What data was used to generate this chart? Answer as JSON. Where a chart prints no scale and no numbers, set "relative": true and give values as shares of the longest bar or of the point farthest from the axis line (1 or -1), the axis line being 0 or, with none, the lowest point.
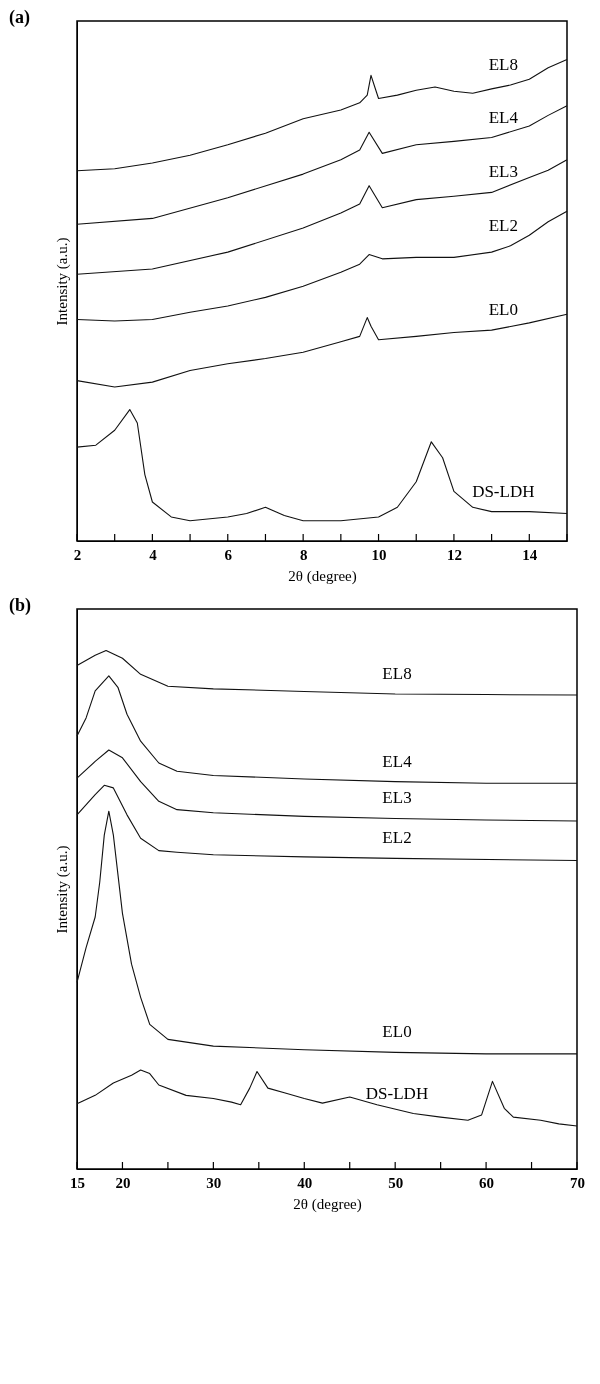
{
  "chart_data": [
    {
      "type": "line",
      "title": "(a)",
      "xlabel": "2θ (degree)",
      "ylabel": "Intensity (a.u.)",
      "relative": true,
      "grid": false,
      "line_style": "solid",
      "marker": "none",
      "tick_labels": "x",
      "xlim": [
        2,
        15
      ],
      "xticks": [
        2,
        {
          "value": 3,
          "label": null
        },
        4,
        {
          "value": 5,
          "label": null
        },
        6,
        {
          "value": 7,
          "label": null
        },
        8,
        {
          "value": 9,
          "label": null
        },
        10,
        {
          "value": 11,
          "label": null
        },
        12,
        {
          "value": 13,
          "label": null
        },
        14,
        {
          "value": 15,
          "label": null
        }
      ],
      "series": [
        {
          "name": "EL8",
          "color": "#111111",
          "x": [
            2,
            3,
            4,
            5,
            6,
            7,
            8,
            9,
            9.5,
            9.7,
            9.8,
            9.9,
            10,
            10.5,
            11,
            11.5,
            12,
            12.5,
            13,
            13.5,
            14,
            14.5,
            15
          ],
          "values": [
            0.769,
            0.773,
            0.785,
            0.801,
            0.823,
            0.847,
            0.877,
            0.895,
            0.91,
            0.926,
            0.967,
            0.943,
            0.919,
            0.926,
            0.936,
            0.943,
            0.934,
            0.93,
            0.939,
            0.947,
            0.959,
            0.983,
            1.0
          ]
        },
        {
          "name": "EL4",
          "color": "#111111",
          "x": [
            2,
            4,
            6,
            8,
            9,
            9.5,
            9.75,
            10.1,
            11,
            12,
            13,
            14,
            14.5,
            15
          ],
          "values": [
            0.658,
            0.67,
            0.713,
            0.762,
            0.792,
            0.812,
            0.849,
            0.805,
            0.823,
            0.83,
            0.838,
            0.862,
            0.884,
            0.904
          ]
        },
        {
          "name": "EL3",
          "color": "#111111",
          "x": [
            2,
            4,
            6,
            8,
            9,
            9.5,
            9.75,
            10.1,
            11,
            12,
            13,
            14,
            14.5,
            15
          ],
          "values": [
            0.554,
            0.565,
            0.6,
            0.65,
            0.681,
            0.7,
            0.738,
            0.692,
            0.709,
            0.716,
            0.724,
            0.755,
            0.77,
            0.792
          ]
        },
        {
          "name": "EL2",
          "color": "#111111",
          "x": [
            2,
            3,
            4,
            5,
            6,
            7,
            8,
            9,
            9.5,
            9.75,
            10.1,
            11,
            12,
            13,
            13.5,
            14,
            14.5,
            15
          ],
          "values": [
            0.46,
            0.457,
            0.46,
            0.475,
            0.488,
            0.506,
            0.529,
            0.558,
            0.575,
            0.595,
            0.586,
            0.589,
            0.589,
            0.6,
            0.613,
            0.635,
            0.663,
            0.685
          ]
        },
        {
          "name": "EL0",
          "color": "#111111",
          "x": [
            2,
            3,
            4,
            5,
            6,
            7,
            8,
            9,
            9.5,
            9.7,
            9.8,
            10,
            11,
            12,
            13,
            14,
            15
          ],
          "values": [
            0.333,
            0.32,
            0.33,
            0.354,
            0.368,
            0.379,
            0.392,
            0.414,
            0.425,
            0.464,
            0.446,
            0.418,
            0.425,
            0.433,
            0.438,
            0.453,
            0.471
          ]
        },
        {
          "name": "DS-LDH",
          "color": "#111111",
          "x": [
            2,
            2.5,
            3,
            3.4,
            3.6,
            3.8,
            4,
            4.5,
            5,
            6,
            6.5,
            7,
            7.5,
            8,
            9,
            10,
            10.5,
            11,
            11.4,
            11.7,
            12,
            12.5,
            13,
            14,
            15
          ],
          "values": [
            0.195,
            0.199,
            0.23,
            0.273,
            0.245,
            0.138,
            0.081,
            0.05,
            0.042,
            0.05,
            0.057,
            0.07,
            0.053,
            0.042,
            0.042,
            0.05,
            0.07,
            0.123,
            0.206,
            0.173,
            0.103,
            0.07,
            0.061,
            0.061,
            0.057
          ]
        }
      ]
    },
    {
      "type": "line",
      "title": "(b)",
      "xlabel": "2θ (degree)",
      "ylabel": "Intensity (a.u.)",
      "relative": true,
      "grid": false,
      "line_style": "solid",
      "marker": "none",
      "tick_labels": "x",
      "xlim": [
        15,
        70
      ],
      "xticks": [
        15,
        20,
        {
          "value": 25,
          "label": null
        },
        30,
        {
          "value": 35,
          "label": null
        },
        40,
        {
          "value": 45,
          "label": null
        },
        50,
        {
          "value": 55,
          "label": null
        },
        60,
        {
          "value": 65,
          "label": null
        },
        70
      ],
      "series": [
        {
          "name": "EL8",
          "color": "#111111",
          "x": [
            15,
            17,
            18.2,
            20,
            22,
            25,
            30,
            40,
            50,
            60,
            70
          ],
          "values": [
            0.971,
            0.991,
            1.0,
            0.985,
            0.954,
            0.931,
            0.926,
            0.921,
            0.916,
            0.915,
            0.914
          ]
        },
        {
          "name": "EL4",
          "color": "#111111",
          "x": [
            15,
            16,
            17,
            18.5,
            19.5,
            20.5,
            22,
            24,
            26,
            30,
            40,
            50,
            60,
            70
          ],
          "values": [
            0.835,
            0.87,
            0.922,
            0.951,
            0.929,
            0.877,
            0.825,
            0.783,
            0.767,
            0.759,
            0.752,
            0.747,
            0.744,
            0.744
          ]
        },
        {
          "name": "EL3",
          "color": "#111111",
          "x": [
            15,
            17,
            18.5,
            20,
            22,
            24,
            26,
            30,
            40,
            50,
            60,
            70
          ],
          "values": [
            0.754,
            0.786,
            0.808,
            0.793,
            0.747,
            0.709,
            0.693,
            0.687,
            0.68,
            0.676,
            0.673,
            0.671
          ]
        },
        {
          "name": "EL2",
          "color": "#111111",
          "x": [
            15,
            17,
            18,
            19,
            20.5,
            22,
            24,
            26,
            30,
            40,
            50,
            70
          ],
          "values": [
            0.683,
            0.722,
            0.74,
            0.735,
            0.683,
            0.638,
            0.614,
            0.611,
            0.606,
            0.602,
            0.599,
            0.595
          ]
        },
        {
          "name": "EL0",
          "color": "#111111",
          "x": [
            15,
            16,
            17,
            17.5,
            18,
            18.5,
            19,
            20,
            21,
            22,
            23,
            25,
            30,
            40,
            50,
            60,
            70
          ],
          "values": [
            0.36,
            0.427,
            0.486,
            0.553,
            0.644,
            0.69,
            0.644,
            0.493,
            0.395,
            0.331,
            0.279,
            0.25,
            0.237,
            0.23,
            0.225,
            0.222,
            0.222
          ]
        },
        {
          "name": "DS-LDH",
          "color": "#111111",
          "x": [
            15,
            17,
            19,
            21,
            22,
            23,
            24,
            27,
            30,
            32,
            33,
            34,
            34.8,
            36,
            38,
            40,
            42,
            45,
            48,
            52,
            55,
            58,
            59.5,
            60.7,
            62,
            63,
            66,
            68,
            70
          ],
          "values": [
            0.126,
            0.142,
            0.166,
            0.181,
            0.191,
            0.184,
            0.162,
            0.142,
            0.136,
            0.129,
            0.124,
            0.156,
            0.188,
            0.156,
            0.146,
            0.136,
            0.127,
            0.139,
            0.124,
            0.107,
            0.1,
            0.094,
            0.104,
            0.169,
            0.117,
            0.1,
            0.094,
            0.087,
            0.083
          ]
        }
      ]
    }
  ]
}
